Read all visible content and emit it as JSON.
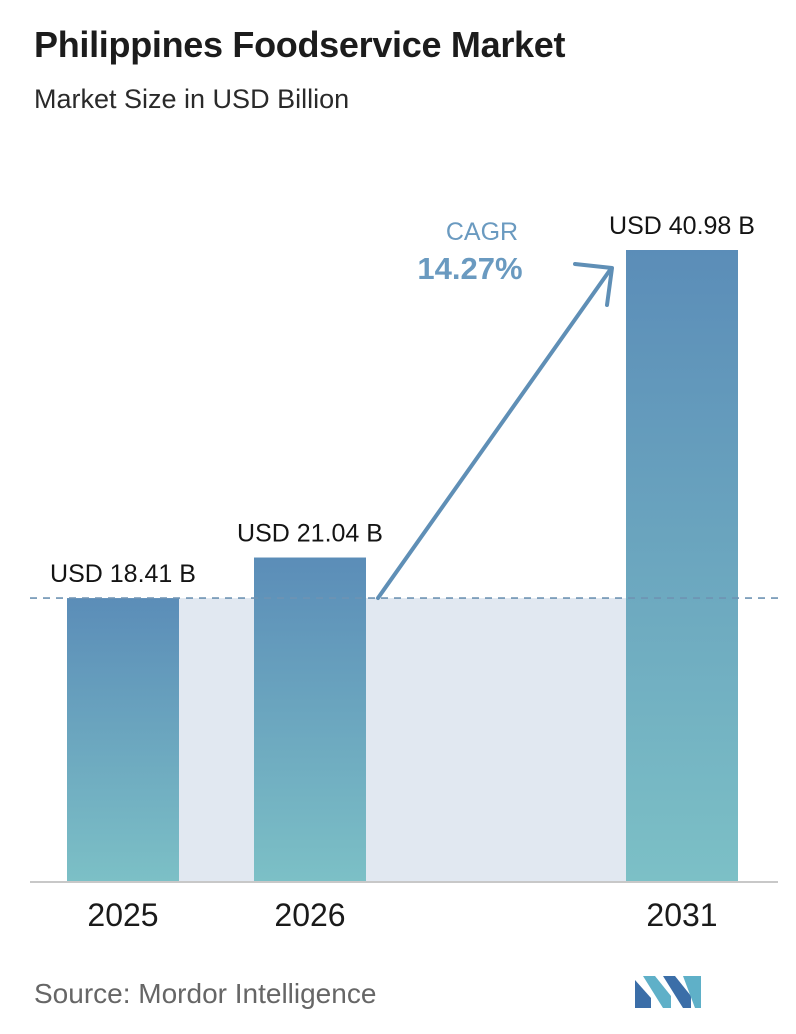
{
  "title": "Philippines Foodservice Market",
  "subtitle": "Market Size in USD Billion",
  "source": "Source:  Mordor Intelligence",
  "cagr": {
    "label": "CAGR",
    "value": "14.27%"
  },
  "colors": {
    "bar_top": "#5b8db8",
    "bar_bottom": "#7cc0c6",
    "band": "#e1e8f1",
    "arrow": "#5f8fb6",
    "cagr_text": "#6a9ac0",
    "axis": "#c8c8c8",
    "dashed": "#6f93b3"
  },
  "chart_data": {
    "type": "bar",
    "categories": [
      "2025",
      "2026",
      "2031"
    ],
    "values": [
      18.41,
      21.04,
      40.98
    ],
    "data_labels": [
      "USD 18.41 B",
      "USD 21.04 B",
      "USD 40.98 B"
    ],
    "title": "Philippines Foodservice Market",
    "subtitle": "Market Size in USD Billion",
    "xlabel": "",
    "ylabel": "",
    "ylim": [
      0,
      40.98
    ],
    "grid": false,
    "legend": "none",
    "reference_line": 18.41
  }
}
